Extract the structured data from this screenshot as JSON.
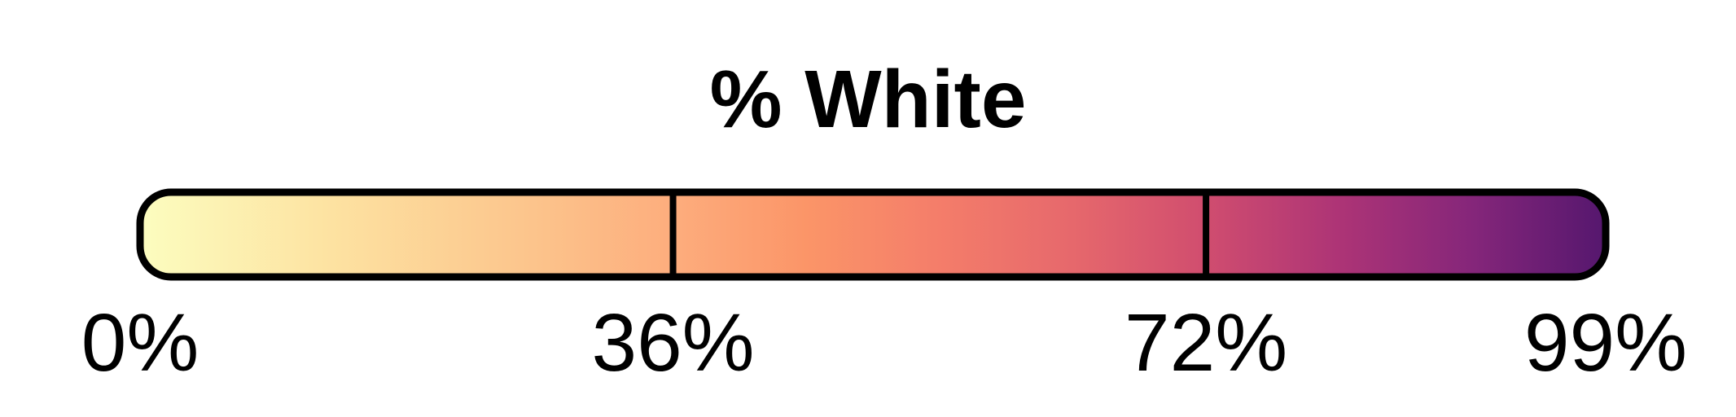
{
  "chart_data": {
    "type": "heatmap",
    "title": "% White",
    "xlabel": "",
    "ylabel": "",
    "colormap": "magma",
    "range": [
      0,
      99
    ],
    "ticks": [
      {
        "value": 0,
        "label": "0%"
      },
      {
        "value": 36,
        "label": "36%"
      },
      {
        "value": 72,
        "label": "72%"
      },
      {
        "value": 99,
        "label": "99%"
      }
    ],
    "dividers": [
      36,
      72
    ],
    "gradient_stops": [
      {
        "value": 0,
        "color": "#fcfdbf"
      },
      {
        "value": 13,
        "color": "#fde2a1"
      },
      {
        "value": 27,
        "color": "#fcc38b"
      },
      {
        "value": 36,
        "color": "#fdad7d"
      },
      {
        "value": 45,
        "color": "#fb9568"
      },
      {
        "value": 54,
        "color": "#f47d6a"
      },
      {
        "value": 63,
        "color": "#e6686c"
      },
      {
        "value": 72,
        "color": "#d04d6f"
      },
      {
        "value": 81,
        "color": "#ad3476"
      },
      {
        "value": 90,
        "color": "#85267a"
      },
      {
        "value": 99,
        "color": "#55176e"
      }
    ],
    "outline_color": "#000000"
  }
}
